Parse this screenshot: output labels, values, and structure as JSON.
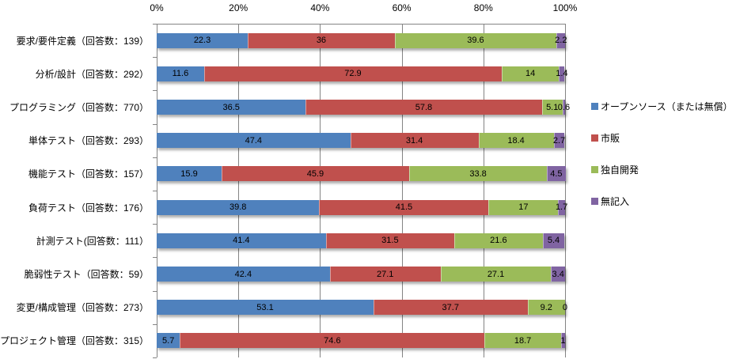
{
  "chart_data": {
    "type": "bar",
    "orientation": "horizontal",
    "stacked": true,
    "stack_total": "100%",
    "title": "",
    "xlabel": "",
    "ylabel": "",
    "categories": [
      "要求/要件定義（回答数：139）",
      "分析/設計（回答数：292）",
      "プログラミング（回答数：770）",
      "単体テスト（回答数：293）",
      "機能テスト（回答数：157）",
      "負荷テスト（回答数：176）",
      "計測テスト(回答数：111）",
      "脆弱性テスト（回答数：59）",
      "変更/構成管理（回答数：273）",
      "プロジェクト管理（回答数：315）"
    ],
    "series": [
      {
        "name": "オープンソース（または無償）",
        "color": "#4F81BD",
        "values": [
          22.3,
          11.6,
          36.5,
          47.4,
          15.9,
          39.8,
          41.4,
          42.4,
          53.1,
          5.7
        ]
      },
      {
        "name": "市販",
        "color": "#C0504D",
        "values": [
          36,
          72.9,
          57.8,
          31.4,
          45.9,
          41.5,
          31.5,
          27.1,
          37.7,
          74.6
        ]
      },
      {
        "name": "独自開発",
        "color": "#9BBB59",
        "values": [
          39.6,
          14,
          5.1,
          18.4,
          33.8,
          17,
          21.6,
          27.1,
          9.2,
          18.7
        ]
      },
      {
        "name": "無記入",
        "color": "#8064A2",
        "values": [
          2.2,
          1.4,
          0.6,
          2.7,
          4.5,
          1.7,
          5.4,
          3.4,
          0,
          1
        ]
      }
    ],
    "x_axis": {
      "position": "top",
      "ticks": [
        "0%",
        "20%",
        "40%",
        "60%",
        "80%",
        "100%"
      ],
      "range": [
        0,
        100
      ],
      "gridlines": true
    },
    "legend": {
      "position": "right"
    },
    "style_colors": {
      "gridline": "#848484",
      "axis": "#848484",
      "data_label_text": "#000000",
      "background": "#ffffff"
    }
  }
}
